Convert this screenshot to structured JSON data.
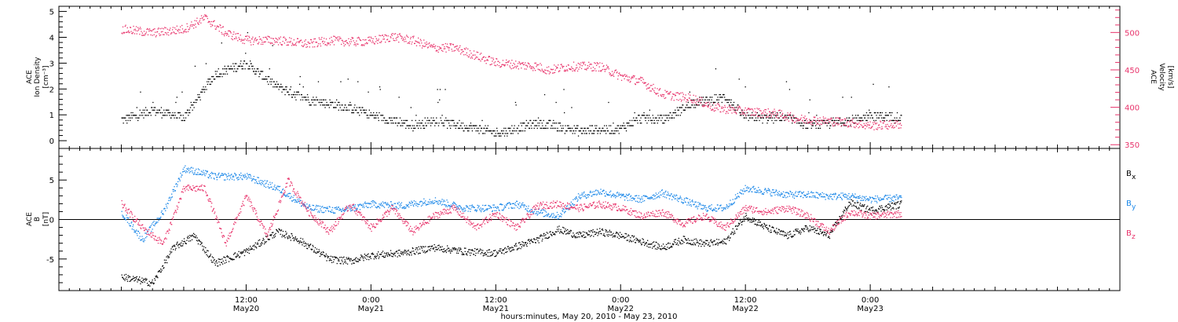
{
  "colors": {
    "black": "#000000",
    "pink": "#e8336b",
    "blue": "#1a87e8"
  },
  "chart_data": [
    {
      "type": "scatter",
      "ylabel_lines": [
        "ACE",
        "Ion Density",
        "[cm⁻³]"
      ],
      "ylim": [
        -0.3,
        5.2
      ],
      "yticks": [
        "0",
        "1",
        "2",
        "3",
        "4",
        "5"
      ],
      "y2label_lines": [
        "ACE",
        "Velocity",
        "[km/s]"
      ],
      "y2lim": [
        345,
        535
      ],
      "y2ticks": [
        "350",
        "400",
        "450",
        "500"
      ],
      "series": [
        {
          "key": "density",
          "axis": "left",
          "color": "#000000",
          "trend": [
            [
              0,
              0.8
            ],
            [
              3,
              1.2
            ],
            [
              6,
              0.9
            ],
            [
              9,
              2.6
            ],
            [
              12,
              3.0
            ],
            [
              15,
              2.1
            ],
            [
              18,
              1.6
            ],
            [
              22,
              1.3
            ],
            [
              24,
              1.0
            ],
            [
              28,
              0.6
            ],
            [
              30,
              0.8
            ],
            [
              34,
              0.5
            ],
            [
              36,
              0.3
            ],
            [
              40,
              0.7
            ],
            [
              44,
              0.4
            ],
            [
              48,
              0.5
            ],
            [
              50,
              0.9
            ],
            [
              52,
              0.8
            ],
            [
              55,
              1.5
            ],
            [
              58,
              1.7
            ],
            [
              60,
              0.9
            ],
            [
              64,
              0.9
            ],
            [
              66,
              0.6
            ],
            [
              68,
              0.7
            ],
            [
              70,
              0.8
            ],
            [
              72,
              1.0
            ],
            [
              75,
              0.9
            ]
          ]
        },
        {
          "key": "velocity",
          "axis": "right",
          "color": "#e8336b",
          "trend": [
            [
              0,
              505
            ],
            [
              3,
              500
            ],
            [
              6,
              505
            ],
            [
              8,
              520
            ],
            [
              10,
              500
            ],
            [
              12,
              490
            ],
            [
              15,
              490
            ],
            [
              18,
              485
            ],
            [
              20,
              490
            ],
            [
              22,
              488
            ],
            [
              24,
              489
            ],
            [
              26,
              495
            ],
            [
              28,
              490
            ],
            [
              30,
              480
            ],
            [
              32,
              480
            ],
            [
              36,
              460
            ],
            [
              40,
              455
            ],
            [
              41,
              450
            ],
            [
              43,
              455
            ],
            [
              46,
              455
            ],
            [
              48,
              442
            ],
            [
              50,
              435
            ],
            [
              52,
              418
            ],
            [
              55,
              412
            ],
            [
              57,
              400
            ],
            [
              60,
              395
            ],
            [
              63,
              392
            ],
            [
              65,
              385
            ],
            [
              67,
              383
            ],
            [
              70,
              380
            ],
            [
              72,
              376
            ],
            [
              75,
              378
            ]
          ]
        }
      ]
    },
    {
      "type": "scatter",
      "ylabel_lines": [
        "ACE",
        "B",
        "[nT]"
      ],
      "ylim": [
        -9,
        9
      ],
      "yticks": [
        "-5",
        "0",
        "5"
      ],
      "series": [
        {
          "key": "bx",
          "label": "B",
          "sub": "x",
          "color": "#000000",
          "trend": [
            [
              0,
              -7.2
            ],
            [
              3,
              -8.0
            ],
            [
              5,
              -3.5
            ],
            [
              7,
              -2.0
            ],
            [
              9,
              -5.5
            ],
            [
              12,
              -4.0
            ],
            [
              15,
              -1.5
            ],
            [
              17,
              -2.5
            ],
            [
              20,
              -5.0
            ],
            [
              22,
              -5.2
            ],
            [
              24,
              -4.5
            ],
            [
              27,
              -4.2
            ],
            [
              30,
              -3.5
            ],
            [
              33,
              -4.0
            ],
            [
              36,
              -4.2
            ],
            [
              40,
              -2.5
            ],
            [
              42,
              -1.2
            ],
            [
              44,
              -2.0
            ],
            [
              46,
              -1.5
            ],
            [
              48,
              -2.0
            ],
            [
              52,
              -3.5
            ],
            [
              54,
              -2.5
            ],
            [
              56,
              -3.0
            ],
            [
              58,
              -2.8
            ],
            [
              60,
              0.5
            ],
            [
              62,
              -1.0
            ],
            [
              64,
              -2.0
            ],
            [
              66,
              -1.0
            ],
            [
              68,
              -2.0
            ],
            [
              70,
              2.2
            ],
            [
              72,
              1.2
            ],
            [
              75,
              2.0
            ]
          ]
        },
        {
          "key": "by",
          "label": "B",
          "sub": "y",
          "color": "#1a87e8",
          "trend": [
            [
              0,
              1.0
            ],
            [
              2,
              -2.5
            ],
            [
              4,
              1.0
            ],
            [
              6,
              6.5
            ],
            [
              9,
              5.5
            ],
            [
              12,
              5.5
            ],
            [
              15,
              4.0
            ],
            [
              18,
              1.5
            ],
            [
              21,
              1.2
            ],
            [
              24,
              2.0
            ],
            [
              27,
              1.8
            ],
            [
              30,
              2.5
            ],
            [
              33,
              1.5
            ],
            [
              36,
              1.5
            ],
            [
              38,
              2.0
            ],
            [
              40,
              1.0
            ],
            [
              42,
              0.5
            ],
            [
              44,
              3.0
            ],
            [
              46,
              3.6
            ],
            [
              48,
              3.0
            ],
            [
              50,
              2.6
            ],
            [
              52,
              3.4
            ],
            [
              54,
              2.5
            ],
            [
              56,
              1.5
            ],
            [
              58,
              1.5
            ],
            [
              60,
              4.0
            ],
            [
              62,
              3.6
            ],
            [
              64,
              3.2
            ],
            [
              66,
              3.2
            ],
            [
              68,
              3.0
            ],
            [
              70,
              3.0
            ],
            [
              72,
              2.6
            ],
            [
              75,
              2.8
            ]
          ]
        },
        {
          "key": "bz",
          "label": "B",
          "sub": "z",
          "color": "#e8336b",
          "trend": [
            [
              0,
              2.0
            ],
            [
              2,
              -1.0
            ],
            [
              4,
              -3.0
            ],
            [
              6,
              4.0
            ],
            [
              8,
              4.0
            ],
            [
              10,
              -3.0
            ],
            [
              12,
              3.0
            ],
            [
              14,
              -2.0
            ],
            [
              16,
              5.0
            ],
            [
              18,
              1.0
            ],
            [
              20,
              -1.5
            ],
            [
              22,
              2.0
            ],
            [
              24,
              -1.0
            ],
            [
              26,
              1.5
            ],
            [
              28,
              -1.5
            ],
            [
              30,
              0.5
            ],
            [
              32,
              1.5
            ],
            [
              34,
              -1.0
            ],
            [
              36,
              0.8
            ],
            [
              38,
              -1.0
            ],
            [
              40,
              1.8
            ],
            [
              42,
              2.0
            ],
            [
              44,
              1.5
            ],
            [
              46,
              2.0
            ],
            [
              48,
              1.5
            ],
            [
              50,
              0.5
            ],
            [
              52,
              1.0
            ],
            [
              54,
              -0.5
            ],
            [
              56,
              0.5
            ],
            [
              58,
              -1.0
            ],
            [
              60,
              1.5
            ],
            [
              62,
              1.0
            ],
            [
              64,
              1.5
            ],
            [
              66,
              0.5
            ],
            [
              68,
              -1.5
            ],
            [
              70,
              1.0
            ],
            [
              72,
              0.5
            ],
            [
              75,
              0.8
            ]
          ]
        }
      ],
      "zero_line": true
    }
  ],
  "time_axis": {
    "xlim_hours": [
      -6,
      96
    ],
    "data_end_hour": 75,
    "major_ticks": [
      {
        "hour": 12,
        "line1": "12:00",
        "line2": "May20"
      },
      {
        "hour": 24,
        "line1": "0:00",
        "line2": "May21"
      },
      {
        "hour": 36,
        "line1": "12:00",
        "line2": "May21"
      },
      {
        "hour": 48,
        "line1": "0:00",
        "line2": "May22"
      },
      {
        "hour": 60,
        "line1": "12:00",
        "line2": "May22"
      },
      {
        "hour": 72,
        "line1": "0:00",
        "line2": "May23"
      }
    ],
    "xlabel": "hours:minutes, May 20, 2010 - May 23, 2010"
  }
}
